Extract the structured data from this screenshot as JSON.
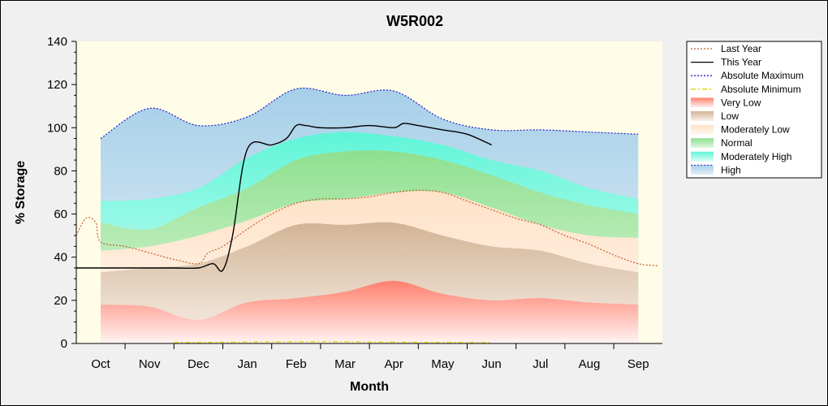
{
  "chart_data": {
    "type": "area",
    "title": "W5R002",
    "xlabel": "Month",
    "ylabel": "% Storage",
    "ylim": [
      0,
      140
    ],
    "yticks": [
      0,
      20,
      40,
      60,
      80,
      100,
      120,
      140
    ],
    "xlim": [
      0,
      12
    ],
    "categories": [
      "Oct",
      "Nov",
      "Dec",
      "Jan",
      "Feb",
      "Mar",
      "Apr",
      "May",
      "Jun",
      "Jul",
      "Aug",
      "Sep"
    ],
    "legend_position": "right",
    "bands": [
      {
        "name": "Very Low",
        "color": "#ff7f6e",
        "fade": "#fff4f2",
        "x": [
          0,
          1,
          2,
          3,
          4,
          5,
          6,
          7,
          8,
          9,
          10,
          11
        ],
        "upper": [
          18,
          17,
          11,
          19,
          21,
          24,
          29,
          23,
          20,
          21,
          19,
          18
        ]
      },
      {
        "name": "Low",
        "color": "#d2b496",
        "fade": "#f8f0e8",
        "x": [
          0,
          1,
          2,
          3,
          4,
          5,
          6,
          7,
          8,
          9,
          10,
          11
        ],
        "upper": [
          33,
          35,
          37,
          45,
          55,
          55,
          56,
          50,
          45,
          43,
          37,
          33
        ]
      },
      {
        "name": "Moderately Low",
        "color": "#ffe2c8",
        "fade": "#fff6ee",
        "x": [
          0,
          1,
          2,
          3,
          4,
          5,
          6,
          7,
          8,
          9,
          10,
          11
        ],
        "upper": [
          43,
          45,
          50,
          57,
          65,
          67,
          70,
          70,
          63,
          55,
          50,
          49
        ]
      },
      {
        "name": "Normal",
        "color": "#8fe08f",
        "fade": "#e0f7e0",
        "x": [
          0,
          1,
          2,
          3,
          4,
          5,
          6,
          7,
          8,
          9,
          10,
          11
        ],
        "upper": [
          56,
          53,
          63,
          72,
          85,
          89,
          89,
          85,
          78,
          70,
          64,
          60
        ]
      },
      {
        "name": "Moderately High",
        "color": "#5ff5d8",
        "fade": "#e0fdf6",
        "x": [
          0,
          1,
          2,
          3,
          4,
          5,
          6,
          7,
          8,
          9,
          10,
          11
        ],
        "upper": [
          66,
          67,
          72,
          86,
          95,
          98,
          96,
          92,
          85,
          80,
          72,
          67
        ]
      },
      {
        "name": "High",
        "color": "#a6cfe8",
        "fade": "#e6f1f8",
        "x": [
          0,
          1,
          2,
          3,
          4,
          5,
          6,
          7,
          8,
          9,
          10,
          11
        ],
        "upper": [
          95,
          109,
          101,
          105,
          118,
          115,
          117,
          104,
          99,
          99,
          98,
          97
        ]
      }
    ],
    "series": [
      {
        "name": "Last Year",
        "style": "dotted",
        "color": "#c0602a",
        "x": [
          -0.5,
          -0.3,
          -0.1,
          0,
          0.5,
          1,
          1.5,
          2,
          2.2,
          2.5,
          3,
          3.5,
          4,
          4.5,
          5,
          5.5,
          6,
          6.5,
          7,
          7.5,
          8,
          8.5,
          9,
          9.5,
          10,
          10.5,
          11,
          11.4
        ],
        "y": [
          50,
          58,
          56,
          47,
          45,
          42,
          39,
          37,
          42,
          45,
          53,
          60,
          65,
          67,
          67,
          68,
          70,
          71,
          70,
          66,
          62,
          58,
          55,
          50,
          46,
          41,
          37,
          36
        ]
      },
      {
        "name": "This Year",
        "style": "solid",
        "color": "#000000",
        "x": [
          -0.5,
          0,
          0.5,
          1,
          1.5,
          2,
          2.3,
          2.5,
          2.7,
          3,
          3.5,
          3.8,
          4,
          4.2,
          4.5,
          5,
          5.5,
          6,
          6.2,
          6.5,
          7,
          7.5,
          8
        ],
        "y": [
          35,
          35,
          35,
          35,
          35,
          35,
          37,
          34,
          50,
          90,
          92,
          95,
          101,
          101,
          100,
          100,
          101,
          100,
          102,
          101,
          99,
          97,
          92
        ]
      },
      {
        "name": "Absolute Maximum",
        "style": "dotted",
        "color": "#2020d0",
        "x": [
          0,
          1,
          2,
          3,
          4,
          5,
          6,
          7,
          8,
          9,
          10,
          11
        ],
        "y": [
          95,
          109,
          101,
          105,
          118,
          115,
          117,
          104,
          99,
          99,
          98,
          97
        ]
      },
      {
        "name": "Absolute Minimum",
        "style": "dashdot",
        "color": "#d8d800",
        "x": [
          1.5,
          2,
          3,
          4,
          5,
          6,
          7,
          8
        ],
        "y": [
          0.5,
          0.5,
          0.7,
          0.8,
          0.8,
          0.6,
          0.5,
          0.5
        ]
      }
    ],
    "legend": [
      "Last Year",
      "This Year",
      "Absolute Maximum",
      "Absolute Minimum",
      "Very Low",
      "Low",
      "Moderately Low",
      "Normal",
      "Moderately High",
      "High"
    ]
  }
}
